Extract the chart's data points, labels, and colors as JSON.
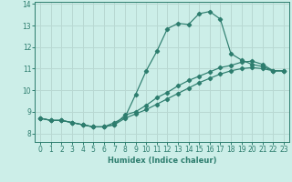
{
  "xlabel": "Humidex (Indice chaleur)",
  "bg_color": "#cceee8",
  "grid_color": "#b8d8d2",
  "line_color": "#2d7d6e",
  "xlim": [
    -0.5,
    23.5
  ],
  "ylim": [
    7.6,
    14.1
  ],
  "xticks": [
    0,
    1,
    2,
    3,
    4,
    5,
    6,
    7,
    8,
    9,
    10,
    11,
    12,
    13,
    14,
    15,
    16,
    17,
    18,
    19,
    20,
    21,
    22,
    23
  ],
  "yticks": [
    8,
    9,
    10,
    11,
    12,
    13,
    14
  ],
  "line1_x": [
    0,
    1,
    2,
    3,
    4,
    5,
    6,
    7,
    8,
    9,
    10,
    11,
    12,
    13,
    14,
    15,
    16,
    17,
    18,
    19,
    20,
    21,
    22,
    23
  ],
  "line1_y": [
    8.7,
    8.6,
    8.6,
    8.5,
    8.4,
    8.3,
    8.3,
    8.5,
    8.75,
    9.8,
    10.9,
    11.8,
    12.85,
    13.1,
    13.05,
    13.55,
    13.65,
    13.3,
    11.7,
    11.4,
    11.2,
    11.1,
    10.9,
    10.9
  ],
  "line2_x": [
    0,
    1,
    2,
    3,
    4,
    5,
    6,
    7,
    8,
    9,
    10,
    11,
    12,
    13,
    14,
    15,
    16,
    17,
    18,
    19,
    20,
    21,
    22,
    23
  ],
  "line2_y": [
    8.7,
    8.6,
    8.6,
    8.5,
    8.4,
    8.3,
    8.3,
    8.4,
    8.85,
    9.0,
    9.3,
    9.65,
    9.9,
    10.2,
    10.45,
    10.65,
    10.85,
    11.05,
    11.15,
    11.3,
    11.35,
    11.2,
    10.9,
    10.9
  ],
  "line3_x": [
    0,
    1,
    2,
    3,
    4,
    5,
    6,
    7,
    8,
    9,
    10,
    11,
    12,
    13,
    14,
    15,
    16,
    17,
    18,
    19,
    20,
    21,
    22,
    23
  ],
  "line3_y": [
    8.7,
    8.6,
    8.6,
    8.5,
    8.4,
    8.3,
    8.3,
    8.4,
    8.7,
    8.9,
    9.1,
    9.35,
    9.6,
    9.85,
    10.1,
    10.35,
    10.55,
    10.75,
    10.9,
    11.0,
    11.05,
    11.0,
    10.9,
    10.9
  ],
  "xlabel_fontsize": 6,
  "tick_fontsize": 5.5,
  "linewidth": 0.85,
  "markersize": 2.2
}
